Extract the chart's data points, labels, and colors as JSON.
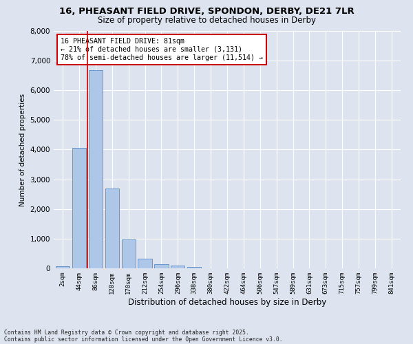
{
  "title_line1": "16, PHEASANT FIELD DRIVE, SPONDON, DERBY, DE21 7LR",
  "title_line2": "Size of property relative to detached houses in Derby",
  "xlabel": "Distribution of detached houses by size in Derby",
  "ylabel": "Number of detached properties",
  "bar_color": "#aec6e8",
  "bar_edge_color": "#5b8cc8",
  "background_color": "#dde4f0",
  "fig_background": "#dde4f0",
  "grid_color": "#ffffff",
  "annotation_text": "16 PHEASANT FIELD DRIVE: 81sqm\n← 21% of detached houses are smaller (3,131)\n78% of semi-detached houses are larger (11,514) →",
  "annotation_box_color": "#ffffff",
  "annotation_box_edge": "#cc0000",
  "vline_color": "#cc0000",
  "vline_pos": 1.5,
  "categories": [
    "2sqm",
    "44sqm",
    "86sqm",
    "128sqm",
    "170sqm",
    "212sqm",
    "254sqm",
    "296sqm",
    "338sqm",
    "380sqm",
    "422sqm",
    "464sqm",
    "506sqm",
    "547sqm",
    "589sqm",
    "631sqm",
    "673sqm",
    "715sqm",
    "757sqm",
    "799sqm",
    "841sqm"
  ],
  "values": [
    70,
    4050,
    6680,
    2700,
    980,
    320,
    130,
    100,
    50,
    0,
    0,
    0,
    0,
    0,
    0,
    0,
    0,
    0,
    0,
    0,
    0
  ],
  "ylim": [
    0,
    8000
  ],
  "yticks": [
    0,
    1000,
    2000,
    3000,
    4000,
    5000,
    6000,
    7000,
    8000
  ],
  "footer_line1": "Contains HM Land Registry data © Crown copyright and database right 2025.",
  "footer_line2": "Contains public sector information licensed under the Open Government Licence v3.0."
}
